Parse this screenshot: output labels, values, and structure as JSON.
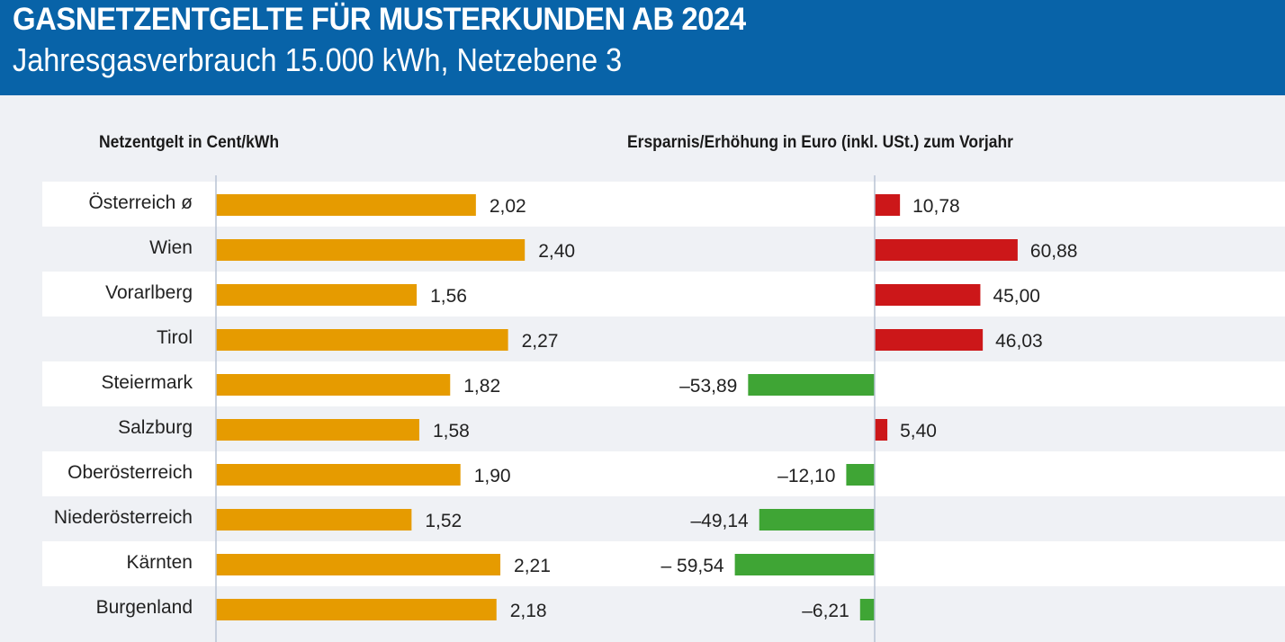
{
  "header": {
    "title": "GASNETZENTGELTE FÜR MUSTERKUNDEN AB 2024",
    "subtitle": "Jahresgasverbrauch 15.000 kWh, Netzebene 3"
  },
  "colors": {
    "header_bg": "#0863a8",
    "fee_bar": "#e69b00",
    "increase_bar": "#cc1719",
    "decrease_bar": "#3fa535",
    "row_alt": "#eff1f5",
    "row": "#ffffff"
  },
  "chart_data": [
    {
      "type": "bar",
      "orientation": "horizontal",
      "title": "Netzentgelt in Cent/kWh",
      "xlabel": "Cent/kWh",
      "categories": [
        "Österreich ø",
        "Wien",
        "Vorarlberg",
        "Tirol",
        "Steiermark",
        "Salzburg",
        "Oberösterreich",
        "Niederösterreich",
        "Kärnten",
        "Burgenland"
      ],
      "values": [
        2.02,
        2.4,
        1.56,
        2.27,
        1.82,
        1.58,
        1.9,
        1.52,
        2.21,
        2.18
      ],
      "labels": [
        "2,02",
        "2,40",
        "1,56",
        "2,27",
        "1,82",
        "1,58",
        "1,90",
        "1,52",
        "2,21",
        "2,18"
      ],
      "xlim": [
        0,
        2.4
      ],
      "grid": false
    },
    {
      "type": "bar",
      "orientation": "horizontal",
      "title": "Ersparnis/Erhöhung in Euro (inkl. USt.) zum Vorjahr",
      "xlabel": "Euro",
      "categories": [
        "Österreich ø",
        "Wien",
        "Vorarlberg",
        "Tirol",
        "Steiermark",
        "Salzburg",
        "Oberösterreich",
        "Niederösterreich",
        "Kärnten",
        "Burgenland"
      ],
      "values": [
        10.78,
        60.88,
        45.0,
        46.03,
        -53.89,
        5.4,
        -12.1,
        -49.14,
        -59.54,
        -6.21
      ],
      "labels": [
        "10,78",
        "60,88",
        "45,00",
        "46,03",
        "–53,89",
        "5,40",
        "–12,10",
        "–49,14",
        "– 59,54",
        "–6,21"
      ],
      "xlim": [
        -60,
        61
      ],
      "grid": false
    }
  ]
}
